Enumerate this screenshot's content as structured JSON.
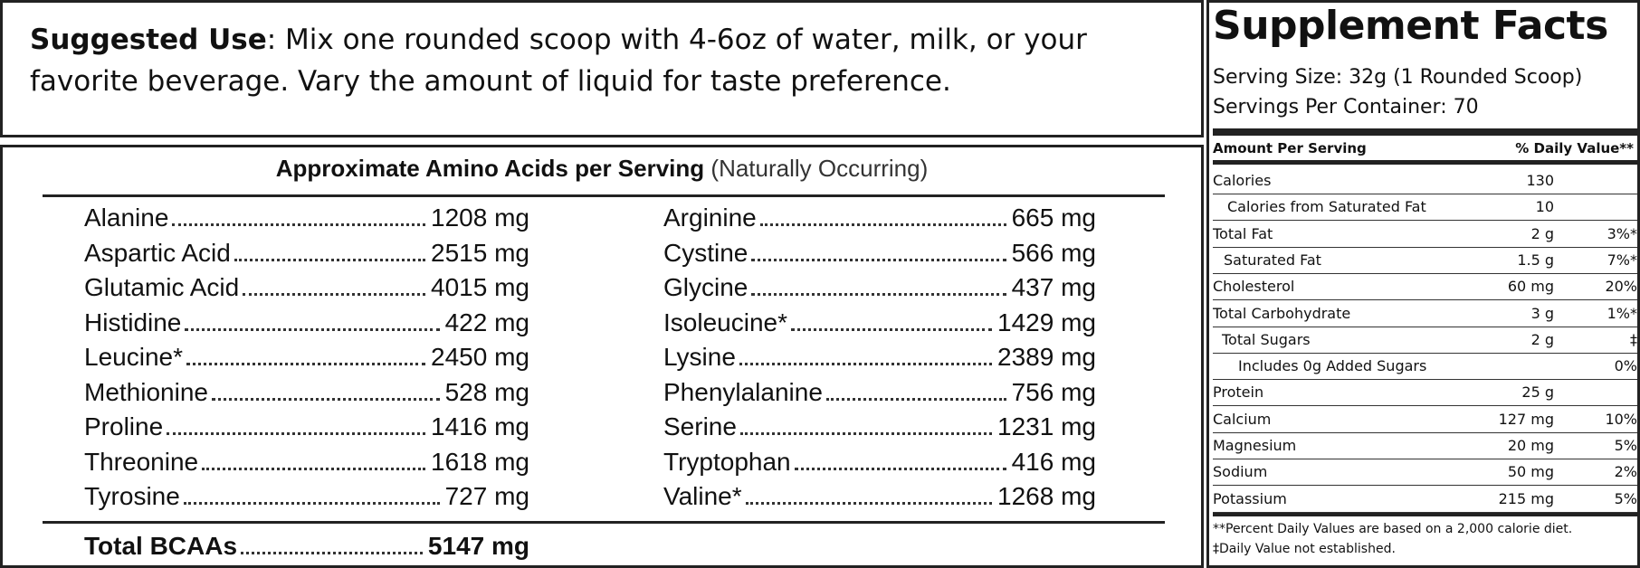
{
  "suggested_use": {
    "label": "Suggested Use",
    "text": ": Mix one rounded scoop with 4-6oz of water, milk, or your favorite beverage. Vary the amount of liquid for taste preference."
  },
  "amino_acids": {
    "title": "Approximate Amino Acids per Serving",
    "subtitle": "(Naturally Occurring)",
    "left": [
      {
        "name": "Alanine",
        "amount": "1208 mg"
      },
      {
        "name": "Aspartic Acid",
        "amount": "2515 mg"
      },
      {
        "name": "Glutamic Acid",
        "amount": "4015 mg"
      },
      {
        "name": "Histidine",
        "amount": "422 mg"
      },
      {
        "name": "Leucine*",
        "amount": "2450 mg"
      },
      {
        "name": "Methionine",
        "amount": "528 mg"
      },
      {
        "name": "Proline",
        "amount": "1416 mg"
      },
      {
        "name": "Threonine",
        "amount": "1618 mg"
      },
      {
        "name": "Tyrosine",
        "amount": "727 mg"
      }
    ],
    "right": [
      {
        "name": "Arginine",
        "amount": "665 mg"
      },
      {
        "name": "Cystine",
        "amount": "566 mg"
      },
      {
        "name": "Glycine",
        "amount": "437 mg"
      },
      {
        "name": "Isoleucine*",
        "amount": "1429 mg"
      },
      {
        "name": "Lysine",
        "amount": "2389 mg"
      },
      {
        "name": "Phenylalanine",
        "amount": "756 mg"
      },
      {
        "name": "Serine",
        "amount": "1231 mg"
      },
      {
        "name": "Tryptophan",
        "amount": "416 mg"
      },
      {
        "name": "Valine*",
        "amount": "1268 mg"
      }
    ],
    "total": {
      "name": "Total BCAAs",
      "amount": "5147 mg"
    }
  },
  "supplement_facts": {
    "title": "Supplement Facts",
    "serving_size": "Serving Size: 32g (1 Rounded Scoop)",
    "servings_per_container": "Servings Per Container: 70",
    "header": {
      "amount": "Amount Per Serving",
      "daily_value": "% Daily Value**"
    },
    "rows": [
      [
        "Calories",
        "130",
        ""
      ],
      [
        "Calories from Saturated Fat",
        "10",
        ""
      ],
      [
        "Total Fat",
        "2 g",
        "3%*"
      ],
      [
        "Saturated Fat",
        "1.5 g",
        "7%*"
      ],
      [
        "Cholesterol",
        "60 mg",
        "20%"
      ],
      [
        "Total Carbohydrate",
        "3 g",
        "1%*"
      ],
      [
        "Total Sugars",
        "2 g",
        "‡"
      ],
      [
        "Includes 0g Added Sugars",
        "",
        "0%"
      ],
      [
        "Protein",
        "25 g",
        ""
      ],
      [
        "Calcium",
        "127 mg",
        "10%"
      ],
      [
        "Magnesium",
        "20 mg",
        "5%"
      ],
      [
        "Sodium",
        "50 mg",
        "2%"
      ],
      [
        "Potassium",
        "215 mg",
        "5%"
      ]
    ],
    "footnotes": [
      "**Percent Daily Values are based on a 2,000 calorie diet.",
      "‡Daily Value not established."
    ]
  }
}
